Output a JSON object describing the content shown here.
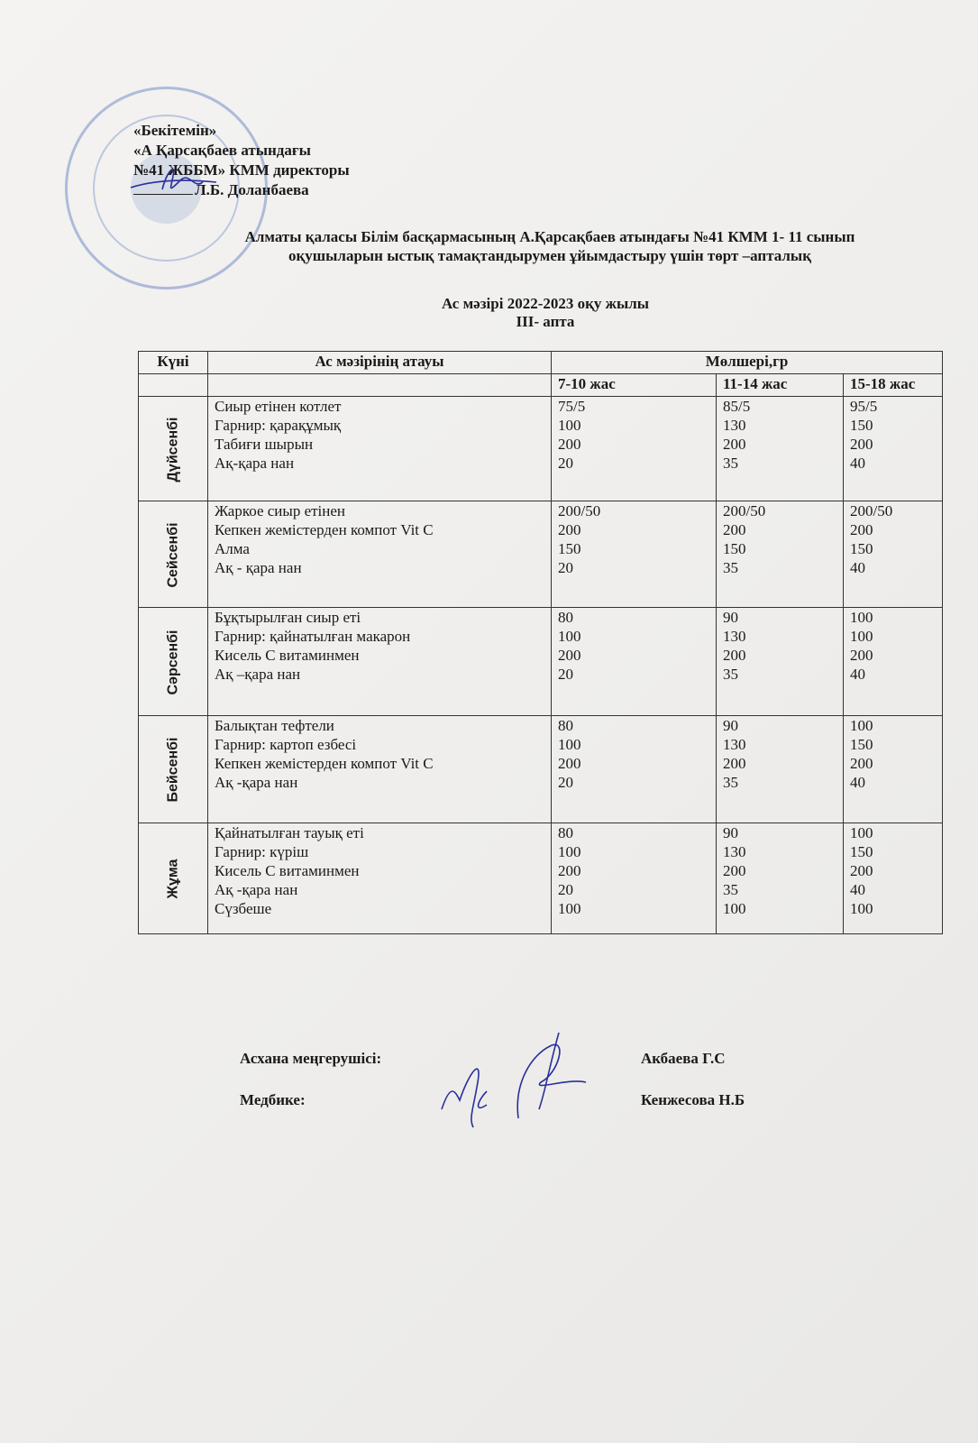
{
  "approval": {
    "line1": "«Бекітемін»",
    "line2": "«А Қарсақбаев атындағы",
    "line3": "№41 ЖББМ» КММ директоры",
    "line4": "Л.Б. Доланбаева"
  },
  "title": {
    "line1": "Алматы қаласы  Білім басқармасының А.Қарсақбаев атындағы  №41 КММ 1- 11 сынып",
    "line2": "оқушыларын  ыстық тамақтандырумен ұйымдастыру үшін  төрт –апталық",
    "line3": "Ас мәзірі 2022-2023  оқу жылы",
    "line4": "ІІІ- апта"
  },
  "table": {
    "headers": {
      "day": "Күні",
      "name": "Ас мәзірінің атауы",
      "amount": "Мөлшері,гр",
      "ages": [
        "7-10 жас",
        "11-14 жас",
        "15-18 жас"
      ]
    },
    "rows": [
      {
        "day": "Дүйсенбі",
        "items": [
          "Сиыр етінен котлет",
          "Гарнир: қарақұмық",
          "Табиғи шырын",
          "Ақ-қара  нан"
        ],
        "a": [
          "75/5",
          "100",
          "200",
          "20"
        ],
        "b": [
          "85/5",
          "130",
          "200",
          "35"
        ],
        "c": [
          "95/5",
          "150",
          "200",
          "40"
        ]
      },
      {
        "day": "Сейсенбі",
        "items": [
          "Жаркое сиыр етінен",
          "Кепкен жемістерден компот Vit C",
          "Алма",
          "Ақ - қара нан"
        ],
        "a": [
          "200/50",
          "200",
          "150",
          "20"
        ],
        "b": [
          "200/50",
          "200",
          "150",
          "35"
        ],
        "c": [
          "200/50",
          "200",
          "150",
          "40"
        ]
      },
      {
        "day": "Сәрсенбі",
        "items": [
          "Бұқтырылған сиыр еті",
          "Гарнир: қайнатылған  макарон",
          "Кисель С витаминмен",
          "Ақ –қара  нан"
        ],
        "a": [
          "80",
          "100",
          "200",
          "20"
        ],
        "b": [
          "90",
          "130",
          "200",
          "35"
        ],
        "c": [
          "100",
          "100",
          "200",
          "40"
        ]
      },
      {
        "day": "Бейсенбі",
        "items": [
          "Балықтан тефтели",
          "Гарнир: картоп езбесі",
          "Кепкен жемістерден компот Vit C",
          "Ақ -қара  нан"
        ],
        "a": [
          "80",
          "100",
          "200",
          "20"
        ],
        "b": [
          "90",
          "130",
          "200",
          "35"
        ],
        "c": [
          "100",
          "150",
          "200",
          "40"
        ]
      },
      {
        "day": "Жұма",
        "items": [
          "Қайнатылған тауық еті",
          "Гарнир: күріш",
          "Кисель С витаминмен",
          "Ақ -қара нан",
          "Сүзбеше"
        ],
        "a": [
          "80",
          "100",
          "200",
          "20",
          "100"
        ],
        "b": [
          "90",
          "130",
          "200",
          "35",
          "100"
        ],
        "c": [
          "100",
          "150",
          "200",
          "40",
          "100"
        ]
      }
    ]
  },
  "footer": {
    "cook_label": "Асхана меңгерушісі:",
    "cook_name": "Акбаева Г.С",
    "nurse_label": "Медбике:",
    "nurse_name": "Кенжесова  Н.Б"
  },
  "colors": {
    "ink": "#1a1a1a",
    "signature": "#2a2f9a",
    "stamp": "#5a78be"
  }
}
